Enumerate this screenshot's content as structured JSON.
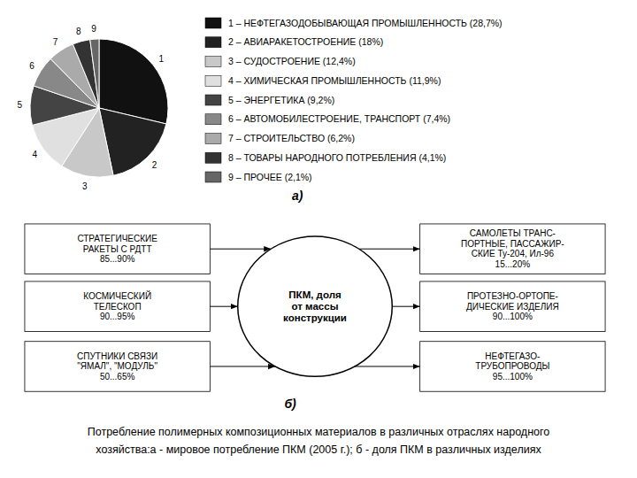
{
  "chart_data": [
    {
      "type": "pie",
      "categories": [
        "1",
        "2",
        "3",
        "4",
        "5",
        "6",
        "7",
        "8",
        "9"
      ],
      "values": [
        28.7,
        18.0,
        12.4,
        11.9,
        9.2,
        7.4,
        6.2,
        4.1,
        2.1
      ],
      "colors": [
        "#111111",
        "#222222",
        "#c8c8c8",
        "#e0e0e0",
        "#444444",
        "#888888",
        "#aaaaaa",
        "#333333",
        "#666666"
      ],
      "legend_entries": [
        "1 – НЕФТЕГАЗОДОБЫВАЮЩАЯ ПРОМЫШЛЕННОСТЬ (28,7%)",
        "2 – АВИАРАКЕТОСТРОЕНИЕ (18%)",
        "3 – СУДОСТРОЕНИЕ (12,4%)",
        "4 – ХИМИЧЕСКАЯ ПРОМЫШЛЕННОСТЬ (11,9%)",
        "5 – ЭНЕРГЕТИКА (9,2%)",
        "6 – АВТОМОБИЛЕСТРОЕНИЕ, ТРАНСПОРТ (7,4%)",
        "7 – СТРОИТЕЛЬСТВО (6,2%)",
        "8 – ТОВАРЫ НАРОДНОГО ПОТРЕБЛЕНИЯ (4,1%)",
        "9 – ПРОЧЕЕ (2,1%)"
      ],
      "annotations": [
        "а)"
      ],
      "caption": [
        "Потребление полимерных композиционных материалов в различных отраслях народного",
        "хозяйства:а - мировое потребление ПКМ (2005 г.); б - доля ПКМ в различных изделиях"
      ]
    },
    {
      "type": "diagram",
      "center_text": "ПКМ, доля\nот массы\nконструкции",
      "left_boxes": [
        "СТРАТЕГИЧЕСКИЕ\nРАКЕТЫ С РДТТ\n85...90%",
        "КОСМИЧЕСКИЙ\nТЕЛЕСКОП\n90...95%",
        "СПУТНИКИ СВЯЗИ\n\"ЯМАЛ\", \"МОДУЛЬ\"\n50...65%"
      ],
      "right_boxes": [
        "САМОЛЕТЫ ТРАНС-\nПОРТНЫЕ, ПАССАЖИР-\nСКИЕ Ту-204, Ил-96\n15...20%",
        "ПРОТЕЗНО-ОРТОПЕ-\nДИЧЕСКИЕ ИЗДЕЛИЯ\n90...100%",
        "НЕФТЕГАЗО-\nТРУБОПРОВОДЫ\n95...100%"
      ],
      "annotations": [
        "б)"
      ]
    }
  ]
}
